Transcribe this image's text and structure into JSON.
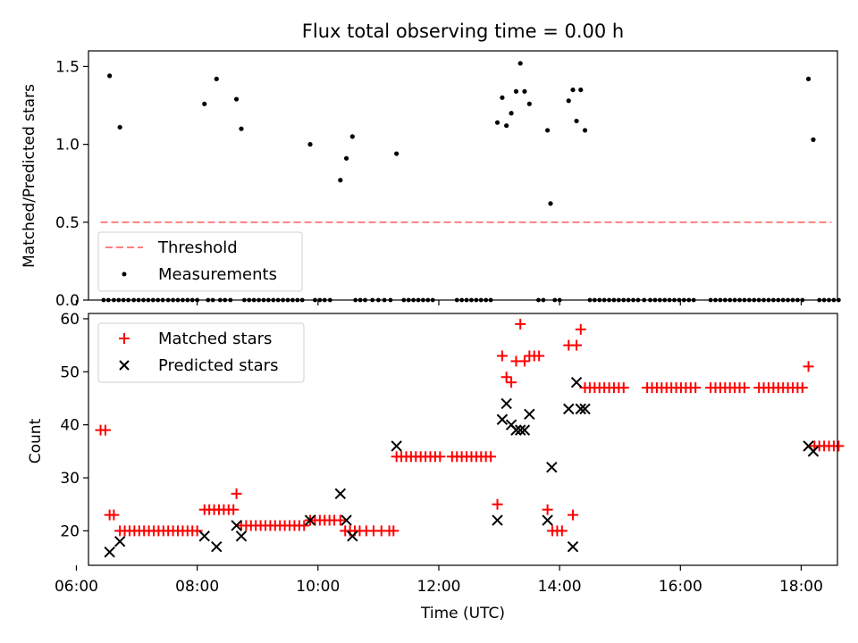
{
  "title": "Flux total observing time = 0.00 h",
  "colors": {
    "threshold": "#ff7f7f",
    "measurements": "#000000",
    "matched": "#ff0000",
    "predicted": "#000000"
  },
  "chart_data": [
    {
      "type": "scatter",
      "ylabel": "Matched/Predicted stars",
      "xlim": [
        6.2,
        18.6
      ],
      "ylim": [
        0,
        1.6
      ],
      "yticks": [
        "0.0",
        "0.5",
        "1.0",
        "1.5"
      ],
      "legend": {
        "placement": "lower-left",
        "entries": [
          "Threshold",
          "Measurements"
        ]
      },
      "threshold": {
        "name": "Threshold",
        "y": 0.5,
        "x": [
          6.4,
          18.5
        ]
      },
      "series": [
        {
          "name": "Measurements",
          "x": [
            6.55,
            6.72,
            8.12,
            8.32,
            8.65,
            8.73,
            9.87,
            10.37,
            10.47,
            10.57,
            11.3,
            12.97,
            13.05,
            13.12,
            13.2,
            13.28,
            13.35,
            13.42,
            13.5,
            13.8,
            13.85,
            14.15,
            14.22,
            14.28,
            14.35,
            14.42,
            18.12,
            18.2
          ],
          "y": [
            1.44,
            1.11,
            1.26,
            1.42,
            1.29,
            1.1,
            1.0,
            0.77,
            0.91,
            1.05,
            0.94,
            1.14,
            1.3,
            1.12,
            1.2,
            1.34,
            1.52,
            1.34,
            1.26,
            1.09,
            0.62,
            1.28,
            1.35,
            1.15,
            1.35,
            1.09,
            1.42,
            1.03
          ]
        },
        {
          "name": "Measurements (zero)",
          "x": [
            6.45,
            6.53,
            6.62,
            6.7,
            6.78,
            6.86,
            6.95,
            7.03,
            7.11,
            7.19,
            7.27,
            7.35,
            7.43,
            7.52,
            7.6,
            7.68,
            7.76,
            7.84,
            7.92,
            8.0,
            8.18,
            8.26,
            8.38,
            8.46,
            8.55,
            8.78,
            8.86,
            8.94,
            9.02,
            9.1,
            9.18,
            9.26,
            9.34,
            9.42,
            9.5,
            9.58,
            9.66,
            9.74,
            9.95,
            10.03,
            10.11,
            10.2,
            10.62,
            10.7,
            10.78,
            10.9,
            11.0,
            11.1,
            11.2,
            11.42,
            11.5,
            11.58,
            11.66,
            11.74,
            11.82,
            11.9,
            12.3,
            12.38,
            12.46,
            12.54,
            12.62,
            12.7,
            12.78,
            12.86,
            13.65,
            13.73,
            13.92,
            14.0,
            14.5,
            14.58,
            14.66,
            14.74,
            14.82,
            14.9,
            14.98,
            15.06,
            15.14,
            15.22,
            15.3,
            15.4,
            15.5,
            15.58,
            15.66,
            15.74,
            15.82,
            15.9,
            15.98,
            16.06,
            16.14,
            16.22,
            16.5,
            16.58,
            16.66,
            16.74,
            16.82,
            16.9,
            16.98,
            17.06,
            17.14,
            17.22,
            17.3,
            17.38,
            17.46,
            17.54,
            17.62,
            17.7,
            17.78,
            17.86,
            17.94,
            18.02,
            18.3,
            18.38,
            18.46,
            18.54,
            18.62
          ],
          "y": 0
        }
      ]
    },
    {
      "type": "scatter",
      "xlabel": "Time (UTC)",
      "ylabel": "Count",
      "xlim": [
        6.2,
        18.6
      ],
      "ylim": [
        13.5,
        61
      ],
      "xticks": [
        "06:00",
        "08:00",
        "10:00",
        "12:00",
        "14:00",
        "16:00",
        "18:00"
      ],
      "yticks": [
        "20",
        "30",
        "40",
        "50",
        "60"
      ],
      "legend": {
        "placement": "top-left",
        "entries": [
          "Matched stars",
          "Predicted stars"
        ]
      },
      "series": [
        {
          "name": "Matched stars",
          "marker": "plus",
          "points": [
            [
              6.4,
              39
            ],
            [
              6.48,
              39
            ],
            [
              6.55,
              23
            ],
            [
              6.62,
              23
            ],
            [
              6.72,
              20
            ],
            [
              6.8,
              20
            ],
            [
              6.88,
              20
            ],
            [
              6.96,
              20
            ],
            [
              7.04,
              20
            ],
            [
              7.12,
              20
            ],
            [
              7.2,
              20
            ],
            [
              7.28,
              20
            ],
            [
              7.36,
              20
            ],
            [
              7.44,
              20
            ],
            [
              7.52,
              20
            ],
            [
              7.6,
              20
            ],
            [
              7.68,
              20
            ],
            [
              7.76,
              20
            ],
            [
              7.84,
              20
            ],
            [
              7.92,
              20
            ],
            [
              8.0,
              20
            ],
            [
              8.12,
              24
            ],
            [
              8.2,
              24
            ],
            [
              8.28,
              24
            ],
            [
              8.36,
              24
            ],
            [
              8.44,
              24
            ],
            [
              8.52,
              24
            ],
            [
              8.6,
              24
            ],
            [
              8.65,
              27
            ],
            [
              8.73,
              21
            ],
            [
              8.81,
              21
            ],
            [
              8.89,
              21
            ],
            [
              8.97,
              21
            ],
            [
              9.05,
              21
            ],
            [
              9.13,
              21
            ],
            [
              9.21,
              21
            ],
            [
              9.29,
              21
            ],
            [
              9.37,
              21
            ],
            [
              9.45,
              21
            ],
            [
              9.53,
              21
            ],
            [
              9.61,
              21
            ],
            [
              9.69,
              21
            ],
            [
              9.77,
              21
            ],
            [
              9.87,
              22
            ],
            [
              9.95,
              22
            ],
            [
              10.03,
              22
            ],
            [
              10.11,
              22
            ],
            [
              10.19,
              22
            ],
            [
              10.27,
              22
            ],
            [
              10.37,
              22
            ],
            [
              10.45,
              20
            ],
            [
              10.53,
              20
            ],
            [
              10.61,
              20
            ],
            [
              10.69,
              20
            ],
            [
              10.8,
              20
            ],
            [
              10.92,
              20
            ],
            [
              11.05,
              20
            ],
            [
              11.18,
              20
            ],
            [
              11.25,
              20
            ],
            [
              11.3,
              34
            ],
            [
              11.38,
              34
            ],
            [
              11.46,
              34
            ],
            [
              11.54,
              34
            ],
            [
              11.62,
              34
            ],
            [
              11.7,
              34
            ],
            [
              11.78,
              34
            ],
            [
              11.86,
              34
            ],
            [
              11.94,
              34
            ],
            [
              12.02,
              34
            ],
            [
              12.22,
              34
            ],
            [
              12.3,
              34
            ],
            [
              12.38,
              34
            ],
            [
              12.46,
              34
            ],
            [
              12.54,
              34
            ],
            [
              12.62,
              34
            ],
            [
              12.7,
              34
            ],
            [
              12.78,
              34
            ],
            [
              12.86,
              34
            ],
            [
              12.97,
              25
            ],
            [
              13.05,
              53
            ],
            [
              13.12,
              49
            ],
            [
              13.2,
              48
            ],
            [
              13.28,
              52
            ],
            [
              13.35,
              59
            ],
            [
              13.42,
              52
            ],
            [
              13.5,
              53
            ],
            [
              13.58,
              53
            ],
            [
              13.66,
              53
            ],
            [
              13.8,
              24
            ],
            [
              13.88,
              20
            ],
            [
              13.96,
              20
            ],
            [
              14.04,
              20
            ],
            [
              14.15,
              55
            ],
            [
              14.22,
              23
            ],
            [
              14.28,
              55
            ],
            [
              14.35,
              58
            ],
            [
              14.42,
              47
            ],
            [
              14.5,
              47
            ],
            [
              14.58,
              47
            ],
            [
              14.66,
              47
            ],
            [
              14.74,
              47
            ],
            [
              14.82,
              47
            ],
            [
              14.9,
              47
            ],
            [
              14.98,
              47
            ],
            [
              15.06,
              47
            ],
            [
              15.45,
              47
            ],
            [
              15.53,
              47
            ],
            [
              15.61,
              47
            ],
            [
              15.69,
              47
            ],
            [
              15.77,
              47
            ],
            [
              15.85,
              47
            ],
            [
              15.93,
              47
            ],
            [
              16.01,
              47
            ],
            [
              16.09,
              47
            ],
            [
              16.17,
              47
            ],
            [
              16.25,
              47
            ],
            [
              16.5,
              47
            ],
            [
              16.58,
              47
            ],
            [
              16.66,
              47
            ],
            [
              16.74,
              47
            ],
            [
              16.82,
              47
            ],
            [
              16.9,
              47
            ],
            [
              16.98,
              47
            ],
            [
              17.06,
              47
            ],
            [
              17.3,
              47
            ],
            [
              17.38,
              47
            ],
            [
              17.46,
              47
            ],
            [
              17.54,
              47
            ],
            [
              17.62,
              47
            ],
            [
              17.7,
              47
            ],
            [
              17.78,
              47
            ],
            [
              17.86,
              47
            ],
            [
              17.94,
              47
            ],
            [
              18.02,
              47
            ],
            [
              18.12,
              51
            ],
            [
              18.22,
              36
            ],
            [
              18.3,
              36
            ],
            [
              18.38,
              36
            ],
            [
              18.46,
              36
            ],
            [
              18.54,
              36
            ],
            [
              18.62,
              36
            ]
          ]
        },
        {
          "name": "Predicted stars",
          "marker": "x",
          "points": [
            [
              6.55,
              16
            ],
            [
              6.72,
              18
            ],
            [
              8.12,
              19
            ],
            [
              8.32,
              17
            ],
            [
              8.65,
              21
            ],
            [
              8.73,
              19
            ],
            [
              9.87,
              22
            ],
            [
              10.37,
              27
            ],
            [
              10.47,
              22
            ],
            [
              10.57,
              19
            ],
            [
              11.3,
              36
            ],
            [
              12.97,
              22
            ],
            [
              13.05,
              41
            ],
            [
              13.12,
              44
            ],
            [
              13.2,
              40
            ],
            [
              13.28,
              39
            ],
            [
              13.35,
              39
            ],
            [
              13.42,
              39
            ],
            [
              13.5,
              42
            ],
            [
              13.8,
              22
            ],
            [
              13.87,
              32
            ],
            [
              14.15,
              43
            ],
            [
              14.22,
              17
            ],
            [
              14.28,
              48
            ],
            [
              14.35,
              43
            ],
            [
              14.42,
              43
            ],
            [
              18.12,
              36
            ],
            [
              18.2,
              35
            ]
          ]
        }
      ]
    }
  ]
}
